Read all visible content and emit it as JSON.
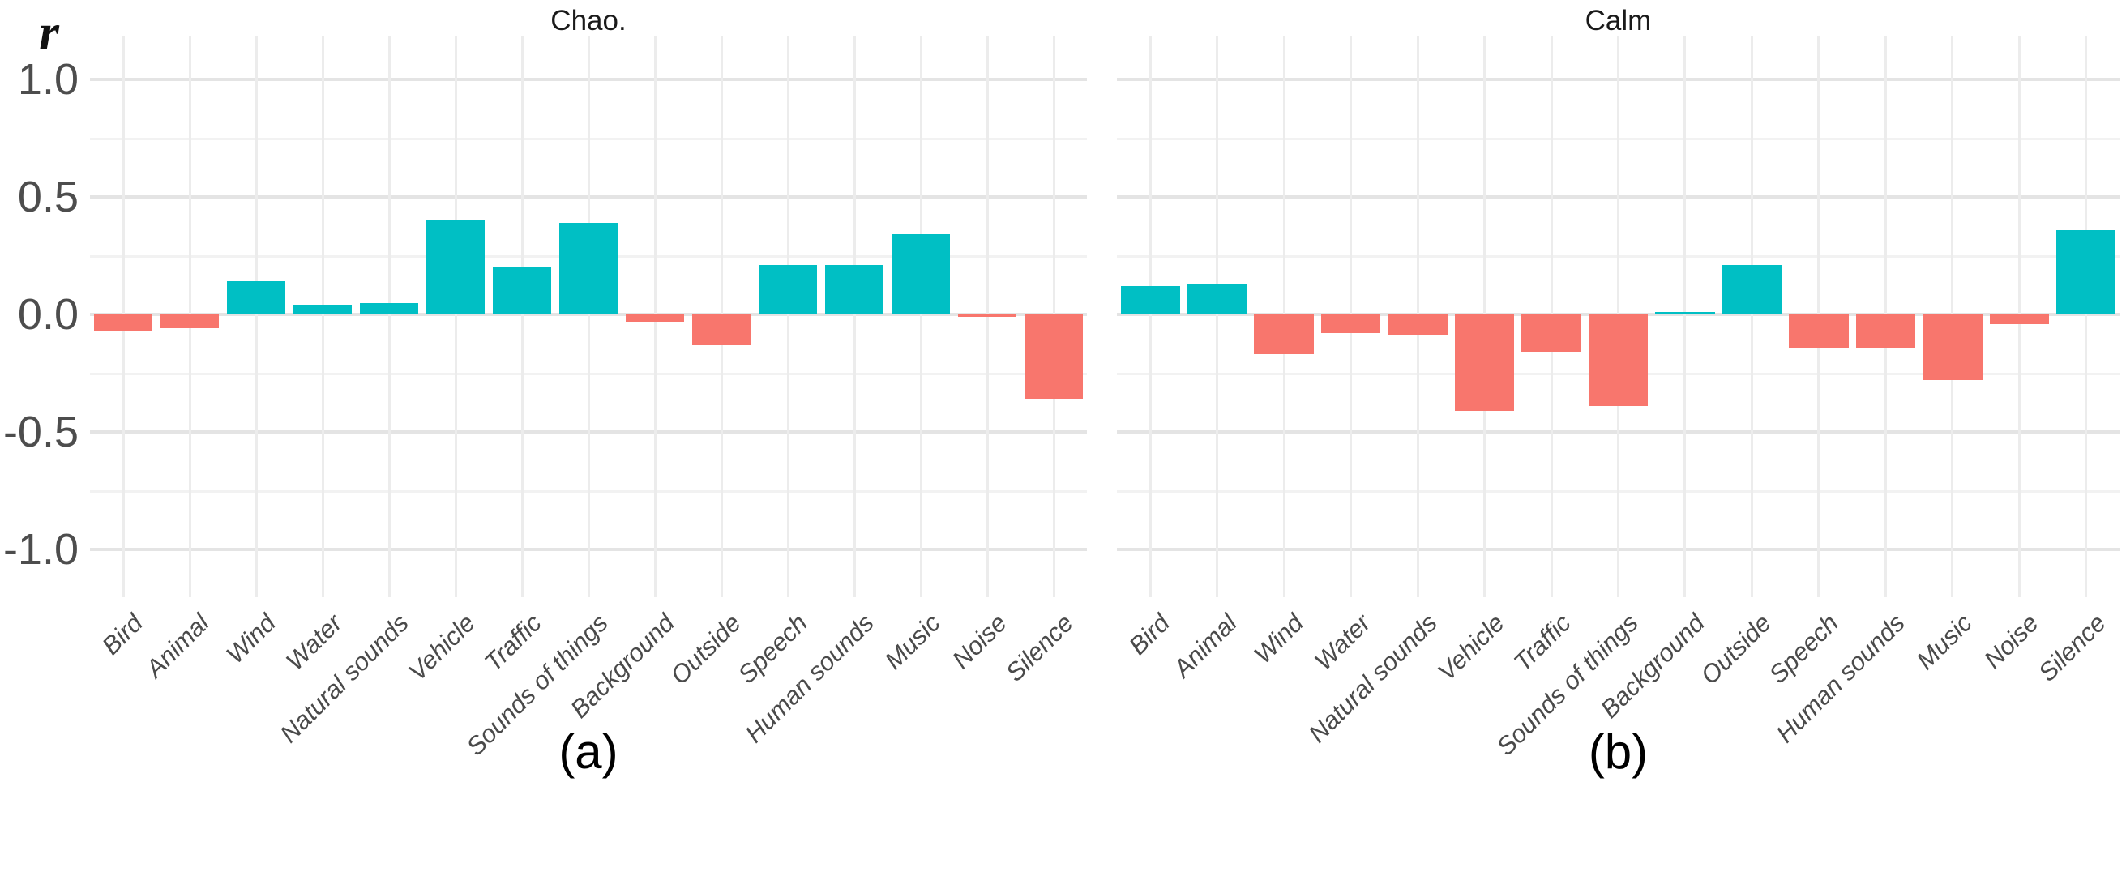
{
  "y_axis": {
    "label": "r",
    "ticks": [
      "1.0",
      "0.5",
      "0.0",
      "-0.5",
      "-1.0"
    ],
    "tick_values": [
      1.0,
      0.5,
      0.0,
      -0.5,
      -1.0
    ],
    "minor_values": [
      0.75,
      0.25,
      -0.25,
      -0.75
    ]
  },
  "colors": {
    "positive_bar": "#00BFC4",
    "negative_bar": "#F8766D",
    "grid_major": "#E4E4E4",
    "grid_minor": "#F2F2F2",
    "grid_vertical": "#ECECEC",
    "tick_text": "#4D4D4D",
    "title_text": "#1A1A1A",
    "caption_text": "#000000"
  },
  "chart_data": [
    {
      "type": "bar",
      "title": "Chao.",
      "caption": "(a)",
      "xlabel": "",
      "ylabel": "r",
      "ylim": [
        -1.2,
        1.2
      ],
      "grid": true,
      "legend": false,
      "categories": [
        "Bird",
        "Animal",
        "Wind",
        "Water",
        "Natural sounds",
        "Vehicle",
        "Traffic",
        "Sounds of things",
        "Background",
        "Outside",
        "Speech",
        "Human sounds",
        "Music",
        "Noise",
        "Silence"
      ],
      "values": [
        -0.07,
        -0.06,
        0.14,
        0.04,
        0.05,
        0.4,
        0.2,
        0.39,
        -0.03,
        -0.13,
        0.21,
        0.21,
        0.34,
        -0.01,
        -0.36
      ]
    },
    {
      "type": "bar",
      "title": "Calm",
      "caption": "(b)",
      "xlabel": "",
      "ylabel": "r",
      "ylim": [
        -1.2,
        1.2
      ],
      "grid": true,
      "legend": false,
      "categories": [
        "Bird",
        "Animal",
        "Wind",
        "Water",
        "Natural sounds",
        "Vehicle",
        "Traffic",
        "Sounds of things",
        "Background",
        "Outside",
        "Speech",
        "Human sounds",
        "Music",
        "Noise",
        "Silence"
      ],
      "values": [
        0.12,
        0.13,
        -0.17,
        -0.08,
        -0.09,
        -0.41,
        -0.16,
        -0.39,
        0.01,
        0.21,
        -0.14,
        -0.14,
        -0.28,
        -0.04,
        0.36
      ]
    }
  ]
}
